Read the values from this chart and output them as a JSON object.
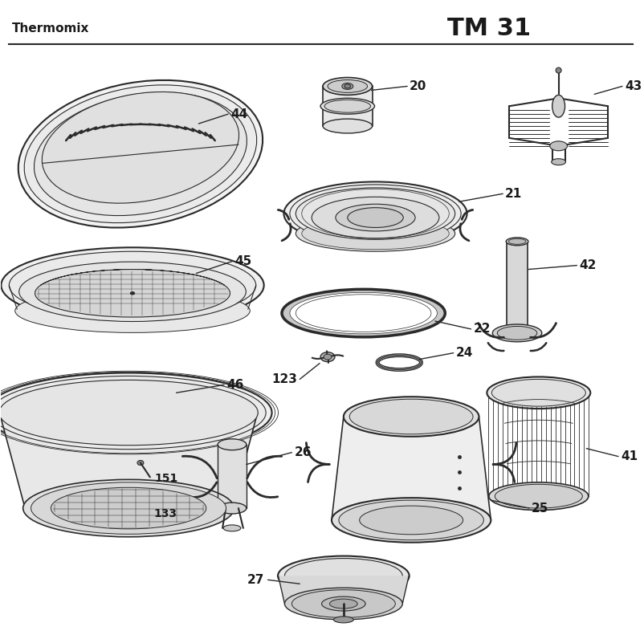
{
  "title_left": "Thermomix",
  "title_right": "TM 31",
  "background_color": "#ffffff",
  "line_color": "#2a2a2a",
  "text_color": "#1a1a1a",
  "fig_width": 8.03,
  "fig_height": 8.01
}
